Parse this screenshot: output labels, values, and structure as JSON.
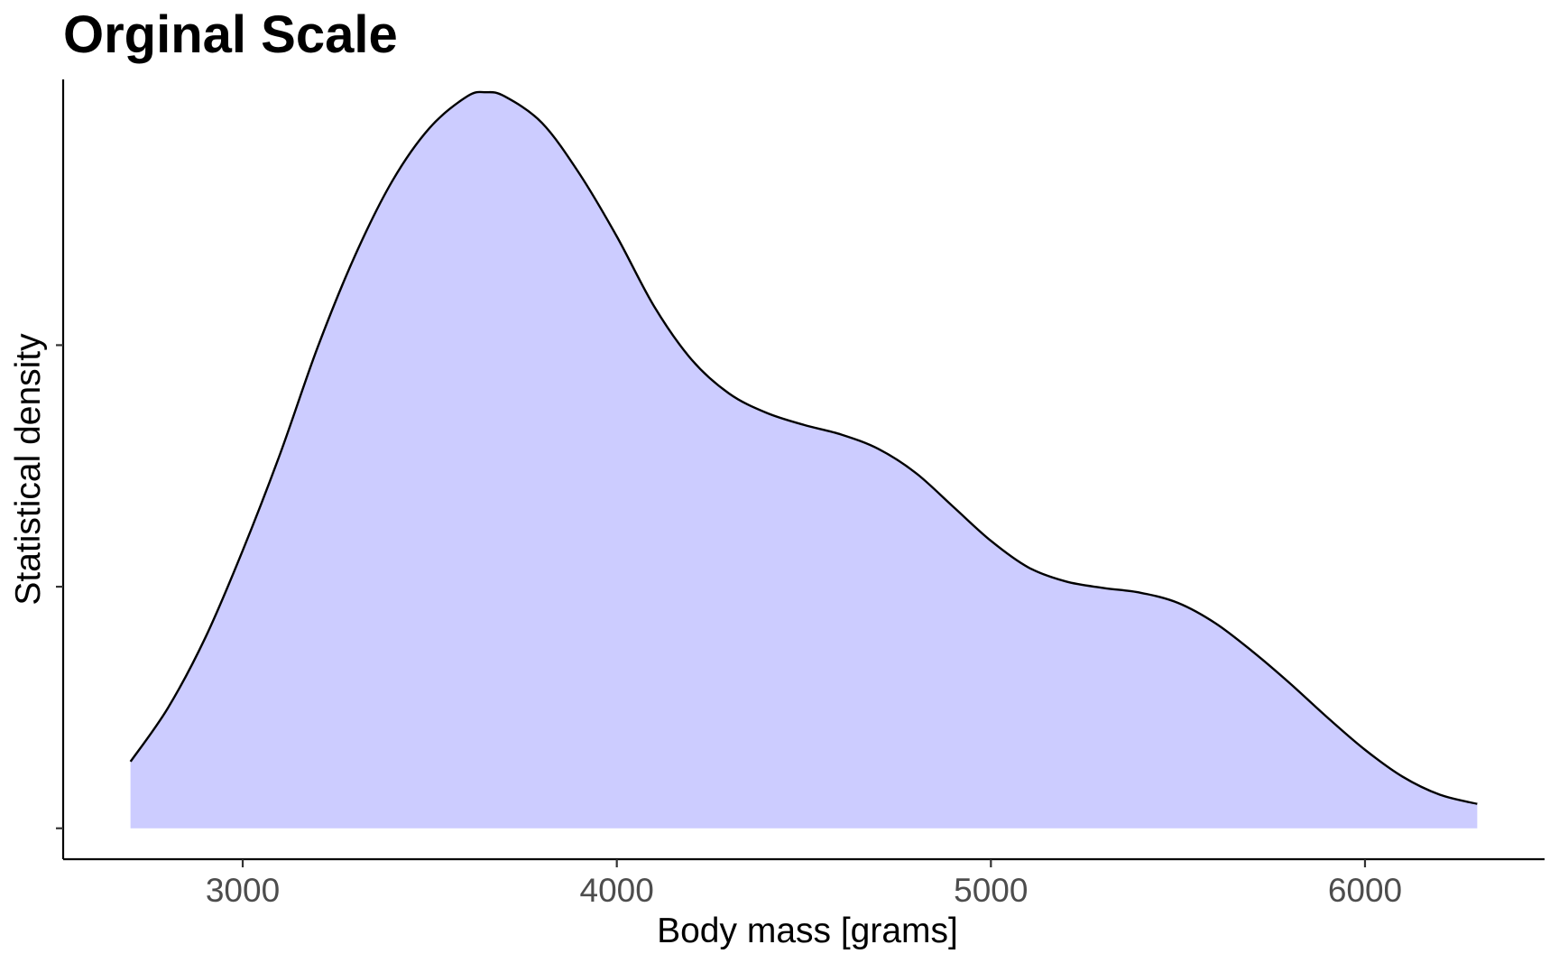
{
  "chart_data": {
    "type": "area",
    "title": "Orginal Scale",
    "xlabel": "Body mass [grams]",
    "ylabel": "Statistical density",
    "xlim": [
      2520,
      6480
    ],
    "ylim": [
      -1.28e-05,
      0.00031
    ],
    "x_ticks": [
      3000,
      4000,
      5000,
      6000
    ],
    "y_ticks": [
      0,
      0.0001,
      0.0002
    ],
    "y_tick_labels_shown": false,
    "grid": false,
    "legend": "none",
    "fill_color": "#ccccff",
    "line_color": "#000000",
    "series": [
      {
        "x": [
          2700,
          2800,
          2900,
          3000,
          3100,
          3200,
          3300,
          3400,
          3500,
          3600,
          3650,
          3700,
          3800,
          3900,
          4000,
          4100,
          4200,
          4300,
          4400,
          4500,
          4600,
          4700,
          4800,
          4900,
          5000,
          5100,
          5200,
          5300,
          5400,
          5500,
          5600,
          5700,
          5800,
          5900,
          6000,
          6100,
          6200,
          6300
        ],
        "y": [
          2.76e-05,
          4.98e-05,
          7.89e-05,
          0.000115,
          0.000155,
          0.000199,
          0.000237,
          0.000268,
          0.00029,
          0.000303,
          0.0003047,
          0.000303,
          0.000292,
          0.000271,
          0.000245,
          0.000216,
          0.000194,
          0.00018,
          0.000172,
          0.000167,
          0.000163,
          0.000157,
          0.000147,
          0.000133,
          0.000119,
          0.000108,
          0.0001022,
          9.95e-05,
          9.75e-05,
          9.33e-05,
          8.49e-05,
          7.31e-05,
          5.99e-05,
          4.58e-05,
          3.25e-05,
          2.14e-05,
          1.39e-05,
          1.01e-05
        ]
      }
    ]
  }
}
